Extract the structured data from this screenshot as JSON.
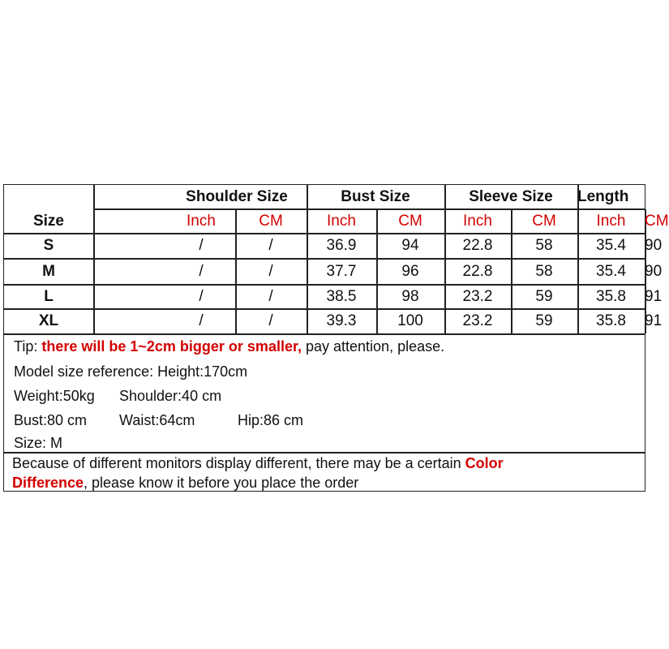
{
  "table": {
    "size_header": "Size",
    "groups": [
      "Shoulder Size",
      "Bust Size",
      "Sleeve Size",
      "Length"
    ],
    "units": [
      "Inch",
      "CM",
      "Inch",
      "CM",
      "Inch",
      "CM",
      "Inch",
      "CM"
    ],
    "rows": [
      {
        "size": "S",
        "values": [
          "/",
          "/",
          "36.9",
          "94",
          "22.8",
          "58",
          "35.4",
          "90"
        ]
      },
      {
        "size": "M",
        "values": [
          "/",
          "/",
          "37.7",
          "96",
          "22.8",
          "58",
          "35.4",
          "90"
        ]
      },
      {
        "size": "L",
        "values": [
          "/",
          "/",
          "38.5",
          "98",
          "23.2",
          "59",
          "35.8",
          "91"
        ]
      },
      {
        "size": "XL",
        "values": [
          "/",
          "/",
          "39.3",
          "100",
          "23.2",
          "59",
          "35.8",
          "91"
        ]
      }
    ]
  },
  "notes": {
    "tip_prefix": "Tip: ",
    "tip_highlight": "there will be 1~2cm bigger or smaller,",
    "tip_suffix": " pay attention, please.",
    "model_ref": "Model size reference: Height:170cm",
    "weight": "Weight:50kg",
    "shoulder": "Shoulder:40 cm",
    "bust": "Bust:80 cm",
    "waist": "Waist:64cm",
    "hip": "Hip:86 cm",
    "size": "Size: M",
    "disclaimer_prefix": "Because of different monitors display different, there may be a certain ",
    "disclaimer_highlight_1": "Color",
    "disclaimer_highlight_2": "Difference",
    "disclaimer_suffix": ", please know it before you place the order"
  },
  "colors": {
    "accent": "#d40000",
    "border": "#222222"
  }
}
